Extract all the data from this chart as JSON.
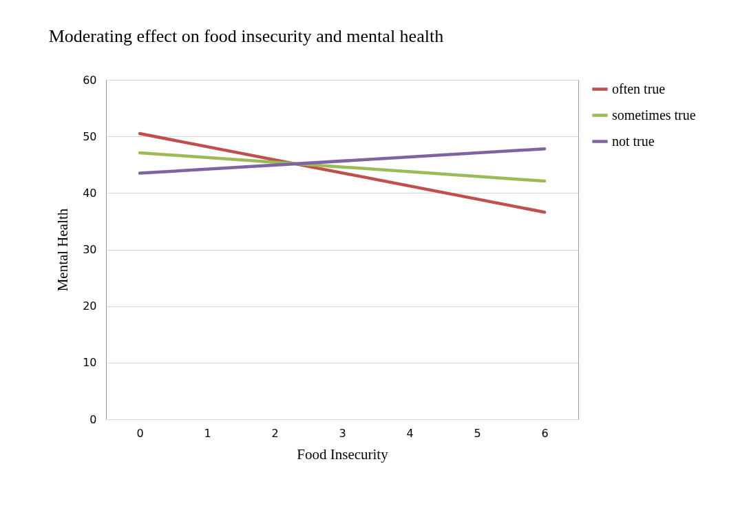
{
  "chart_data": {
    "type": "line",
    "title": "Moderating effect on food insecurity and mental health",
    "xlabel": "Food Insecurity",
    "ylabel": "Mental Health",
    "x": [
      0,
      6
    ],
    "xlim": [
      -0.5,
      6.5
    ],
    "xticks": [
      0,
      1,
      2,
      3,
      4,
      5,
      6
    ],
    "ylim": [
      0,
      60
    ],
    "yticks": [
      0,
      10,
      20,
      30,
      40,
      50,
      60
    ],
    "grid": "y",
    "legend": "right",
    "marker": "none",
    "line_style": "solid",
    "series": [
      {
        "name": "often true",
        "color": "#c0504d",
        "values": [
          50.5,
          36.6
        ]
      },
      {
        "name": "sometimes true",
        "color": "#9bbb59",
        "values": [
          47.1,
          42.1
        ]
      },
      {
        "name": "not true",
        "color": "#8064a2",
        "values": [
          43.5,
          47.8
        ]
      }
    ]
  }
}
